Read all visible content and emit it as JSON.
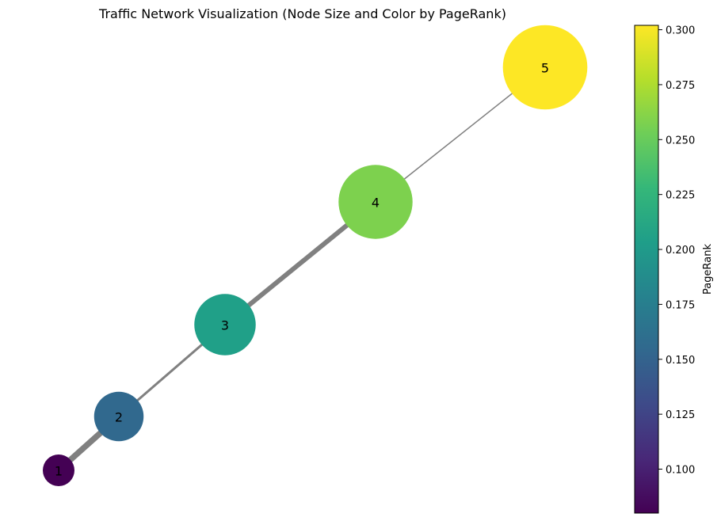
{
  "chart_data": {
    "type": "network",
    "title": "Traffic Network Visualization (Node Size and Color by PageRank)",
    "colorbar": {
      "label": "PageRank",
      "range": [
        0.08,
        0.302
      ],
      "ticks": [
        "0.100",
        "0.125",
        "0.150",
        "0.175",
        "0.200",
        "0.225",
        "0.250",
        "0.275",
        "0.300"
      ],
      "tick_values": [
        0.1,
        0.125,
        0.15,
        0.175,
        0.2,
        0.225,
        0.25,
        0.275,
        0.3
      ],
      "colormap": "viridis"
    },
    "nodes": [
      {
        "id": "1",
        "pagerank": 0.08
      },
      {
        "id": "2",
        "pagerank": 0.155
      },
      {
        "id": "3",
        "pagerank": 0.205
      },
      {
        "id": "4",
        "pagerank": 0.258
      },
      {
        "id": "5",
        "pagerank": 0.302
      }
    ],
    "edges": [
      {
        "source": "1",
        "target": "2",
        "weight": 5
      },
      {
        "source": "2",
        "target": "3",
        "weight": 2
      },
      {
        "source": "3",
        "target": "4",
        "weight": 4
      },
      {
        "source": "4",
        "target": "5",
        "weight": 1
      }
    ],
    "grid": false,
    "axes_visible": false
  },
  "colors": {
    "edge": "#808080",
    "viridis": [
      "#440154",
      "#482878",
      "#3e4a89",
      "#31688e",
      "#26828e",
      "#1f9e89",
      "#35b779",
      "#6ece58",
      "#b5de2b",
      "#fde725"
    ]
  }
}
